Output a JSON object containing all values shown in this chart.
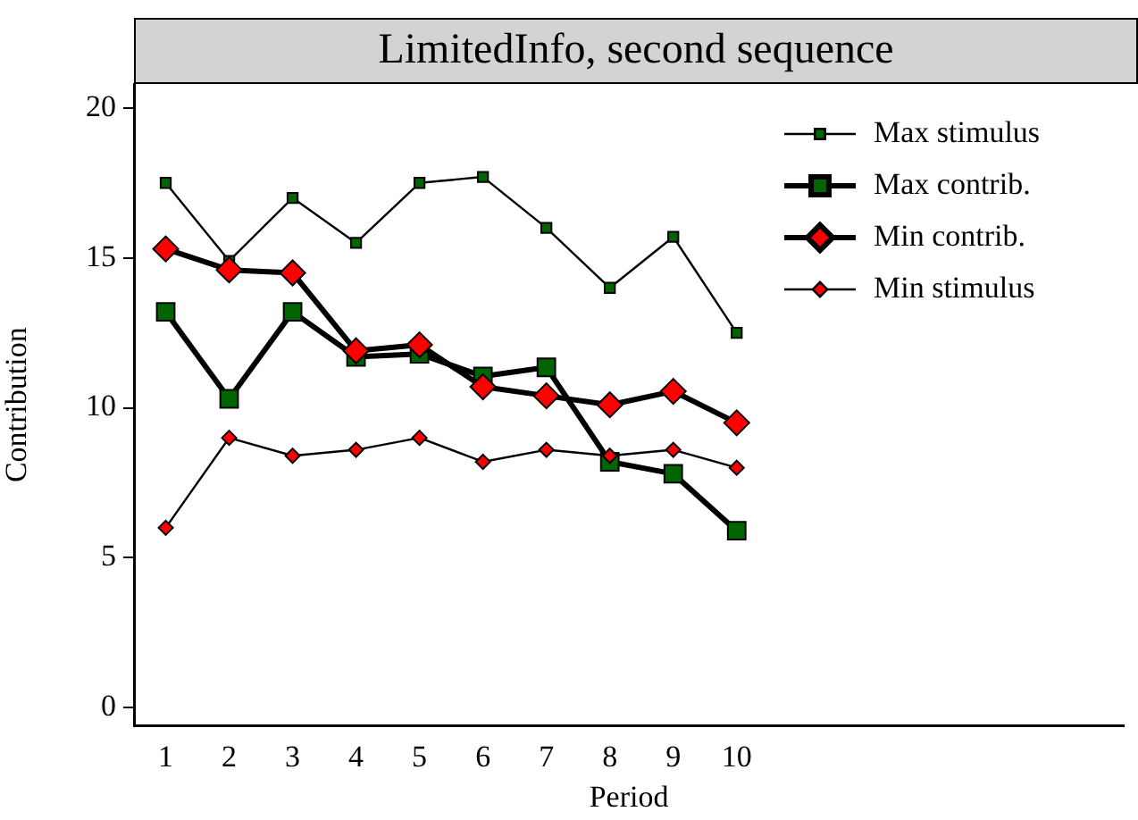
{
  "chart_data": {
    "type": "line",
    "title": "LimitedInfo, second sequence",
    "xlabel": "Period",
    "ylabel": "Contribution",
    "x": [
      1,
      2,
      3,
      4,
      5,
      6,
      7,
      8,
      9,
      10
    ],
    "xlim": [
      0.5,
      16.1
    ],
    "xticks": [
      1,
      2,
      3,
      4,
      5,
      6,
      7,
      8,
      9,
      10
    ],
    "ylim": [
      -0.6,
      20.8
    ],
    "yticks": [
      0,
      5,
      10,
      15,
      20
    ],
    "grid": false,
    "legend": "top right",
    "line_style": "solid",
    "series": [
      {
        "name": "Max stimulus",
        "color": "#006400",
        "marker": "square",
        "values": [
          17.5,
          14.9,
          17.0,
          15.5,
          17.5,
          17.7,
          16.0,
          14.0,
          15.7,
          12.5
        ]
      },
      {
        "name": "Max contrib.",
        "color": "#006400",
        "marker": "square",
        "values": [
          13.2,
          10.3,
          13.2,
          11.7,
          11.8,
          11.05,
          11.35,
          8.2,
          7.8,
          5.9
        ]
      },
      {
        "name": "Min contrib.",
        "color": "#ff0000",
        "marker": "diamond",
        "values": [
          15.3,
          14.6,
          14.5,
          11.9,
          12.1,
          10.7,
          10.4,
          10.1,
          10.55,
          9.5
        ]
      },
      {
        "name": "Min stimulus",
        "color": "#ff0000",
        "marker": "diamond",
        "values": [
          6.0,
          9.0,
          8.4,
          8.6,
          9.0,
          8.2,
          8.6,
          8.4,
          8.6,
          8.0
        ]
      }
    ]
  }
}
